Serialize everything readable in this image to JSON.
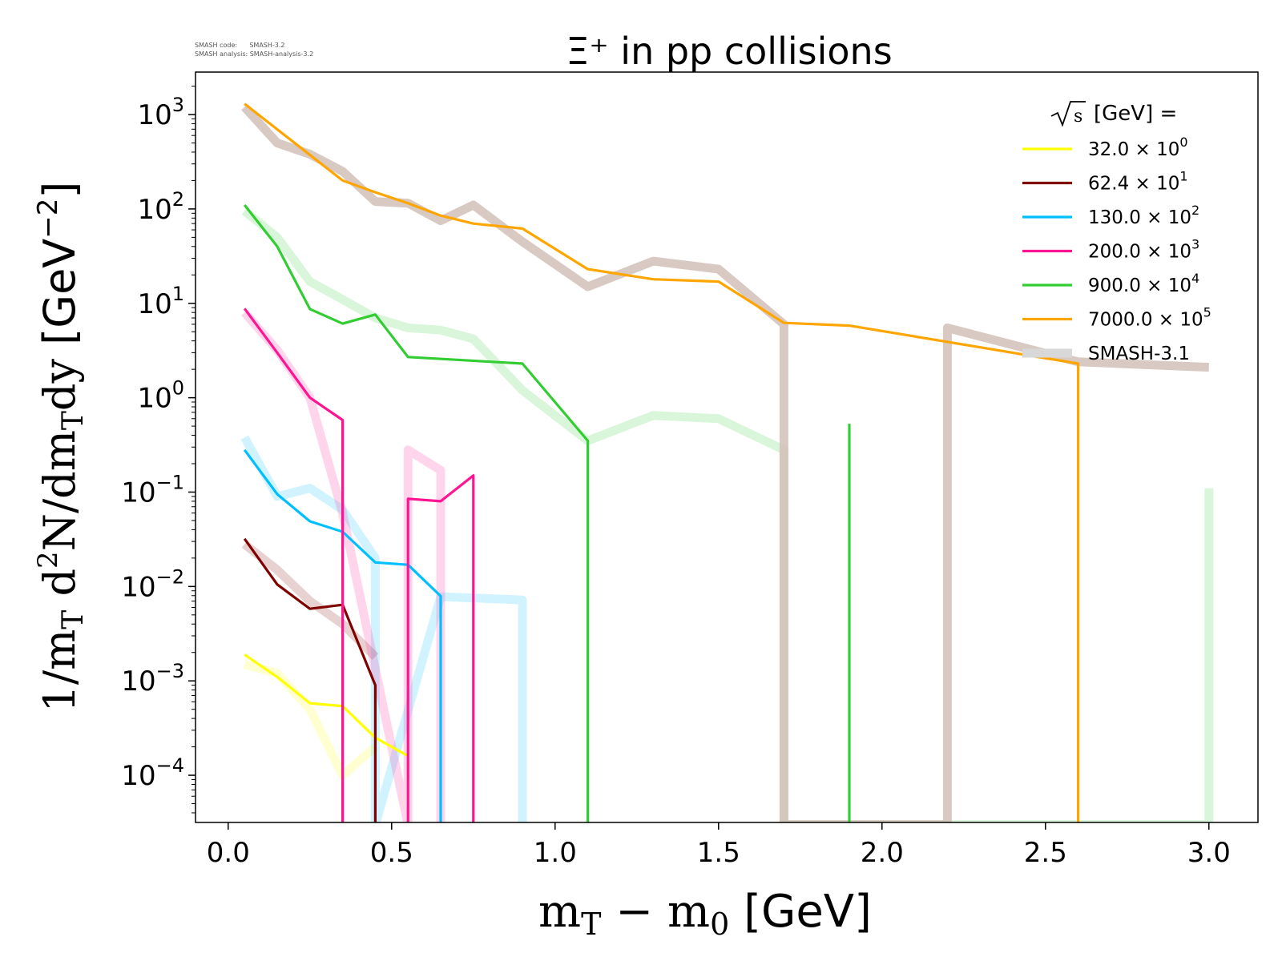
{
  "watermark": {
    "line1": "SMASH code:      SMASH-3.2",
    "line2": "SMASH analysis: SMASH-analysis-3.2"
  },
  "legend_title": "[GeV] =",
  "chart_data": {
    "type": "line",
    "title": "Ξ⁺ in pp collisions",
    "xlabel": "m_T - m_0 [GeV]",
    "ylabel": "1/m_T d²N/dm_T dy [GeV⁻²]",
    "xlim": [
      -0.1,
      3.15
    ],
    "ylim_log10": [
      -4.5,
      3.45
    ],
    "log_y": true,
    "grid": false,
    "legend_position": "top-right",
    "x_ticks": [
      0.0,
      0.5,
      1.0,
      1.5,
      2.0,
      2.5,
      3.0
    ],
    "x_tick_labels": [
      "0.0",
      "0.5",
      "1.0",
      "1.5",
      "2.0",
      "2.5",
      "3.0"
    ],
    "y_ticks": [
      3,
      2,
      1,
      0,
      -1,
      -2,
      -3,
      -4
    ],
    "series": [
      {
        "name": "32.0 × 10⁰",
        "mantissa": "32.0",
        "exponent": "0",
        "color": "#ffff00",
        "x": [
          0.05,
          0.15,
          0.25,
          0.35,
          0.45,
          0.55
        ],
        "y": [
          0.0019,
          0.0011,
          0.00058,
          0.00054,
          0.00025,
          0.00016
        ]
      },
      {
        "name": "62.4 × 10¹",
        "mantissa": "62.4",
        "exponent": "1",
        "color": "#800000",
        "x": [
          0.05,
          0.15,
          0.25,
          0.35,
          0.45,
          0.45
        ],
        "y": [
          0.032,
          0.0105,
          0.0058,
          0.0064,
          0.0009,
          3e-05
        ]
      },
      {
        "name": "130.0 × 10²",
        "mantissa": "130.0",
        "exponent": "2",
        "color": "#00bfff",
        "x": [
          0.05,
          0.15,
          0.25,
          0.35,
          0.45,
          0.55,
          0.65,
          0.65
        ],
        "y": [
          0.28,
          0.095,
          0.049,
          0.038,
          0.018,
          0.017,
          0.0079,
          3e-05
        ]
      },
      {
        "name": "200.0 × 10³",
        "mantissa": "200.0",
        "exponent": "3",
        "color": "#ff1493",
        "x": [
          0.05,
          0.15,
          0.25,
          0.35,
          0.35,
          0.55,
          0.55,
          0.65,
          0.75,
          0.75
        ],
        "y": [
          8.8,
          3.0,
          1.0,
          0.58,
          3e-05,
          3e-05,
          0.085,
          0.08,
          0.15,
          3e-05
        ]
      },
      {
        "name": "900.0 × 10⁴",
        "mantissa": "900.0",
        "exponent": "4",
        "color": "#32cd32",
        "x": [
          0.05,
          0.15,
          0.25,
          0.35,
          0.45,
          0.55,
          0.9,
          1.1,
          1.1,
          1.9,
          1.9
        ],
        "y": [
          110,
          40,
          8.7,
          6.1,
          7.6,
          2.7,
          2.3,
          0.35,
          3e-05,
          3e-05,
          0.53
        ]
      },
      {
        "name": "7000.0 × 10⁵",
        "mantissa": "7000.0",
        "exponent": "5",
        "color": "#ffa500",
        "x": [
          0.05,
          0.35,
          0.45,
          0.55,
          0.65,
          0.75,
          0.9,
          1.1,
          1.3,
          1.5,
          1.7,
          1.9,
          2.6,
          2.6
        ],
        "y": [
          1300,
          200,
          150,
          115,
          85,
          70,
          62,
          23,
          18,
          17,
          6.2,
          5.8,
          2.3,
          3e-05
        ]
      }
    ],
    "reference": {
      "name": "SMASH-3.1",
      "series": [
        {
          "color": "#ffff00",
          "x": [
            0.05,
            0.15,
            0.25,
            0.35,
            0.45
          ],
          "y": [
            0.0015,
            0.0012,
            0.0005,
            0.0001,
            0.0002
          ]
        },
        {
          "color": "#800000",
          "x": [
            0.05,
            0.15,
            0.25,
            0.35,
            0.45
          ],
          "y": [
            0.028,
            0.015,
            0.007,
            0.004,
            0.0018
          ]
        },
        {
          "color": "#00bfff",
          "x": [
            0.05,
            0.15,
            0.25,
            0.35,
            0.45,
            0.45,
            0.65,
            0.9,
            0.9
          ],
          "y": [
            0.38,
            0.09,
            0.11,
            0.065,
            0.02,
            3e-05,
            0.0078,
            0.0072,
            3e-05
          ]
        },
        {
          "color": "#ff1493",
          "x": [
            0.05,
            0.15,
            0.25,
            0.35,
            0.55,
            0.55,
            0.65,
            0.65
          ],
          "y": [
            8,
            3.2,
            1.0,
            0.06,
            3e-05,
            0.28,
            0.17,
            3e-05
          ]
        },
        {
          "color": "#32cd32",
          "x": [
            0.05,
            0.15,
            0.25,
            0.35,
            0.45,
            0.55,
            0.65,
            0.75,
            0.9,
            1.1,
            1.3,
            1.5,
            1.7,
            1.7,
            3.0,
            3.0
          ],
          "y": [
            95,
            50,
            17,
            11,
            7,
            5.5,
            5.2,
            4.2,
            1.2,
            0.35,
            0.65,
            0.6,
            0.28,
            3e-05,
            3e-05,
            0.11
          ]
        },
        {
          "color": "#d2c0b8",
          "x": [
            0.05,
            0.15,
            0.25,
            0.35,
            0.45,
            0.55,
            0.65,
            0.75,
            0.9,
            1.1,
            1.3,
            1.5,
            1.7,
            1.7,
            2.2,
            2.2,
            2.6,
            3.0
          ],
          "y": [
            1200,
            500,
            380,
            250,
            120,
            115,
            75,
            110,
            45,
            15,
            28,
            23,
            6,
            3e-05,
            3e-05,
            5.5,
            2.4,
            2.1
          ]
        }
      ]
    }
  }
}
